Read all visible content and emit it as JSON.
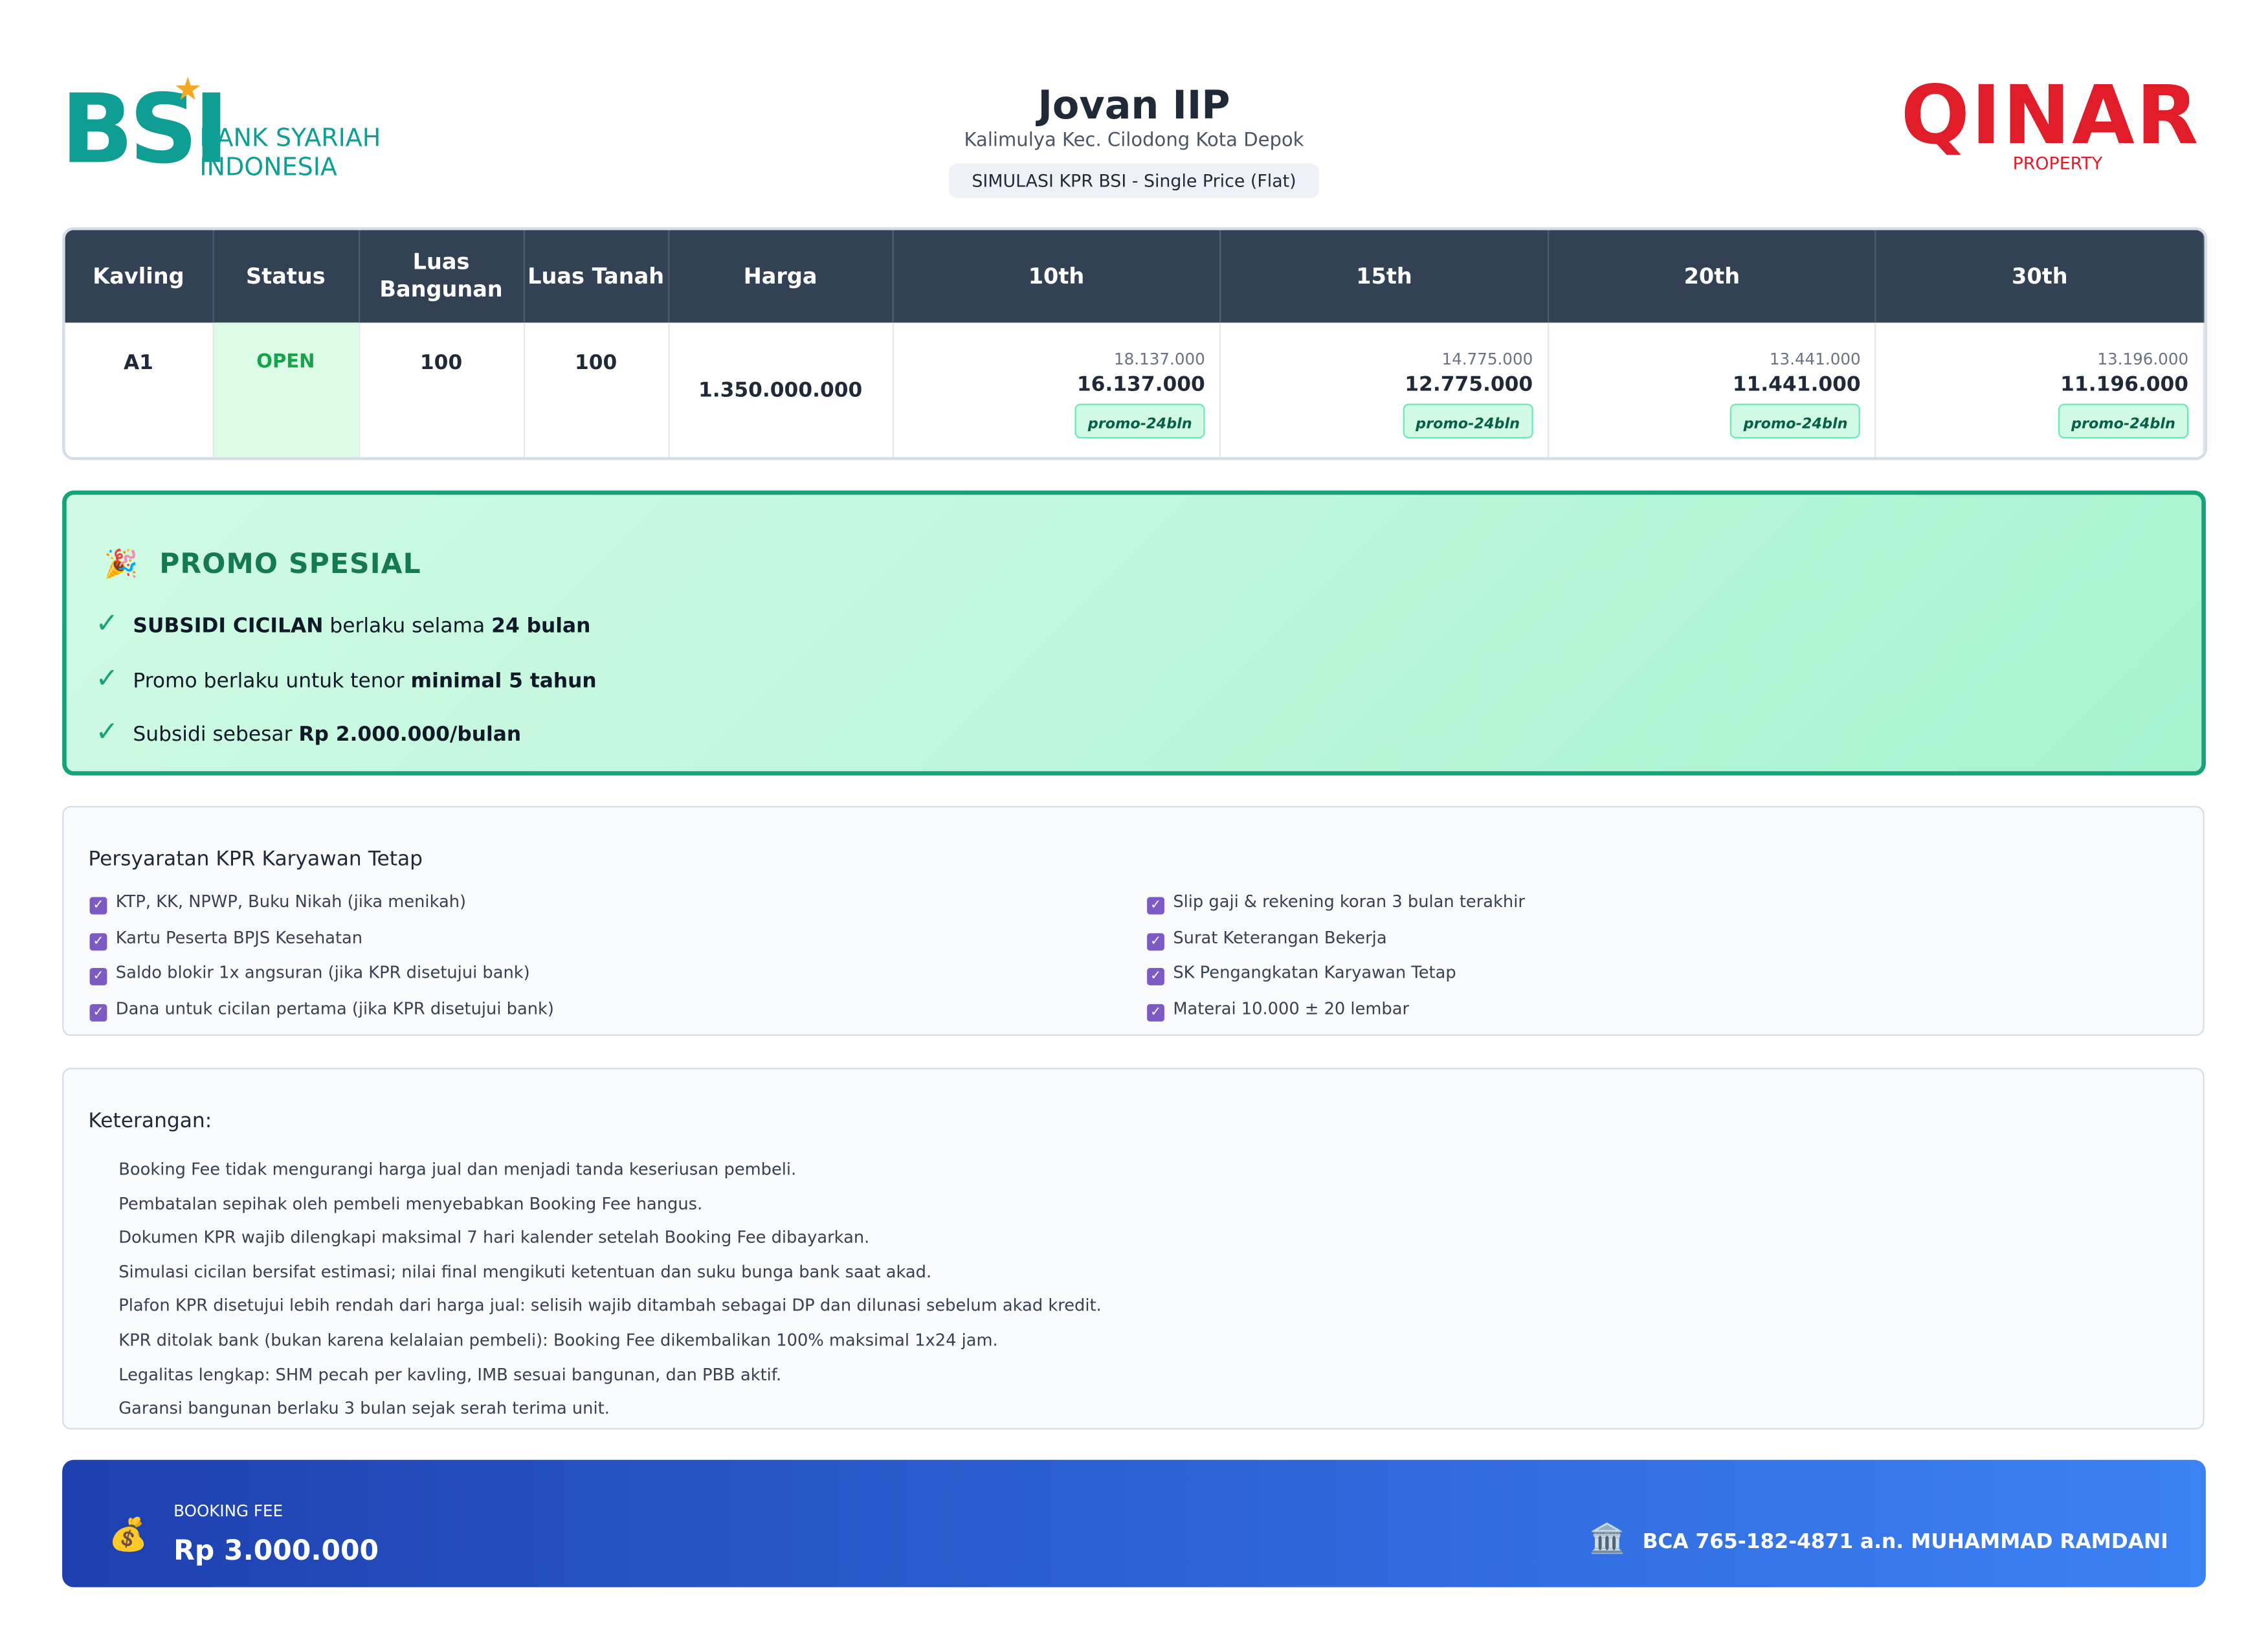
{
  "header": {
    "bank_logo": {
      "mark": "BSI",
      "line1": "BANK SYARIAH",
      "line2": "INDONESIA"
    },
    "title": "Jovan IIP",
    "location": "Kalimulya Kec. Cilodong Kota Depok",
    "subtitle": "SIMULASI KPR BSI - Single Price (Flat)",
    "developer_logo": {
      "mark": "QINAR",
      "sub": "PROPERTY"
    }
  },
  "table": {
    "headers": [
      "Kavling",
      "Status",
      "Luas Bangunan",
      "Luas Tanah",
      "Harga",
      "10th",
      "15th",
      "20th",
      "30th"
    ],
    "rows": [
      {
        "kavling": "A1",
        "status": "OPEN",
        "luas_bangunan": "100",
        "luas_tanah": "100",
        "harga": "1.350.000.000",
        "tenors": [
          {
            "original": "18.137.000",
            "promo": "16.137.000",
            "badge": "promo-24bln"
          },
          {
            "original": "14.775.000",
            "promo": "12.775.000",
            "badge": "promo-24bln"
          },
          {
            "original": "13.441.000",
            "promo": "11.441.000",
            "badge": "promo-24bln"
          },
          {
            "original": "13.196.000",
            "promo": "11.196.000",
            "badge": "promo-24bln"
          }
        ]
      }
    ]
  },
  "promo": {
    "title": "PROMO SPESIAL",
    "items": [
      [
        {
          "text": "SUBSIDI CICILAN",
          "bold": true
        },
        {
          "text": "berlaku selama",
          "bold": false
        },
        {
          "text": "24 bulan",
          "bold": true
        }
      ],
      [
        {
          "text": "Promo berlaku untuk tenor",
          "bold": false
        },
        {
          "text": "minimal 5 tahun",
          "bold": true
        }
      ],
      [
        {
          "text": "Subsidi sebesar",
          "bold": false
        },
        {
          "text": "Rp 2.000.000/bulan",
          "bold": true
        }
      ]
    ]
  },
  "requirements": {
    "title": "Persyaratan KPR Karyawan Tetap",
    "items": [
      "KTP, KK, NPWP, Buku Nikah (jika menikah)",
      "Kartu Peserta BPJS Kesehatan",
      "Saldo blokir 1x angsuran (jika KPR disetujui bank)",
      "Dana untuk cicilan pertama (jika KPR disetujui bank)",
      "Slip gaji & rekening koran 3 bulan terakhir",
      "Surat Keterangan Bekerja",
      "SK Pengangkatan Karyawan Tetap",
      "Materai 10.000 ± 20 lembar"
    ]
  },
  "notes": {
    "title": "Keterangan:",
    "items": [
      "Booking Fee tidak mengurangi harga jual dan menjadi tanda keseriusan pembeli.",
      "Pembatalan sepihak oleh pembeli menyebabkan Booking Fee hangus.",
      "Dokumen KPR wajib dilengkapi maksimal 7 hari kalender setelah Booking Fee dibayarkan.",
      "Simulasi cicilan bersifat estimasi; nilai final mengikuti ketentuan dan suku bunga bank saat akad.",
      "Plafon KPR disetujui lebih rendah dari harga jual: selisih wajib ditambah sebagai DP dan dilunasi sebelum akad kredit.",
      "KPR ditolak bank (bukan karena kelalaian pembeli): Booking Fee dikembalikan 100% maksimal 1x24 jam.",
      "Legalitas lengkap: SHM pecah per kavling, IMB sesuai bangunan, dan PBB aktif.",
      "Garansi bangunan berlaku 3 bulan sejak serah terima unit."
    ]
  },
  "booking": {
    "label": "BOOKING FEE",
    "amount": "Rp 3.000.000",
    "account": "BCA 765-182-4871 a.n. MUHAMMAD RAMDANI"
  }
}
